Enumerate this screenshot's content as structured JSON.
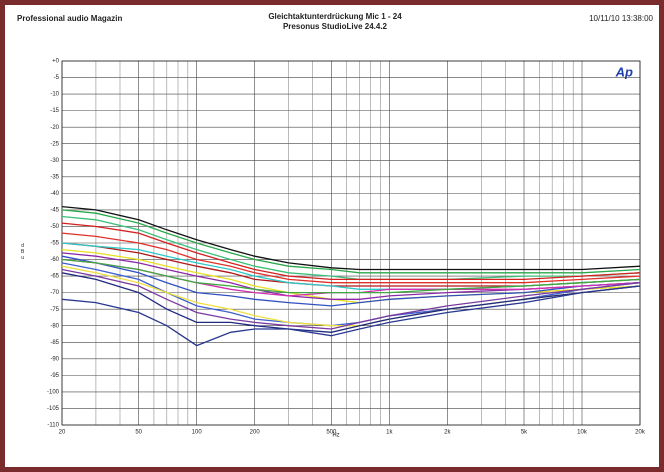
{
  "chart_data": {
    "type": "line",
    "source": "Professional audio Magazin",
    "title": "Gleichtaktunterdrückung Mic 1 - 24",
    "subtitle": "Presonus StudioLive 24.4.2",
    "timestamp": "10/11/10 13:38:00",
    "logo": "Ap",
    "xlabel": "Hz",
    "ylabel": "dBu",
    "xscale": "log",
    "grid": true,
    "xlim": [
      20,
      20000
    ],
    "ylim": [
      -110,
      0
    ],
    "xticks": [
      20,
      50,
      100,
      200,
      500,
      {
        "value": 1000,
        "label": "1k"
      },
      {
        "value": 2000,
        "label": "2k"
      },
      {
        "value": 5000,
        "label": "5k"
      },
      {
        "value": 10000,
        "label": "10k"
      },
      {
        "value": 20000,
        "label": "20k"
      }
    ],
    "xminorticks": [
      30,
      40,
      60,
      70,
      80,
      90,
      300,
      400,
      600,
      700,
      800,
      900,
      3000,
      4000,
      6000,
      7000,
      8000,
      9000
    ],
    "yticks": [
      {
        "value": 0,
        "label": "+0"
      },
      -5,
      -10,
      -15,
      -20,
      -25,
      -30,
      -35,
      -40,
      -45,
      -50,
      -55,
      -60,
      -65,
      -70,
      -75,
      -80,
      -85,
      -90,
      -95,
      -100,
      -105,
      -110
    ],
    "x": [
      20,
      30,
      50,
      70,
      100,
      150,
      200,
      300,
      500,
      700,
      1000,
      2000,
      5000,
      10000,
      20000
    ],
    "series": [
      {
        "color": "#111111",
        "values": [
          -44,
          -45,
          -48,
          -51,
          -54,
          -57,
          -59,
          -61,
          -62.5,
          -63,
          -63,
          -63,
          -63,
          -63,
          -62
        ]
      },
      {
        "color": "#2aa84a",
        "values": [
          -45,
          -46,
          -49,
          -52,
          -55,
          -58,
          -60,
          -62,
          -63,
          -64,
          -64,
          -64,
          -64,
          -64,
          -63
        ]
      },
      {
        "color": "#3cc07a",
        "values": [
          -47,
          -48,
          -51,
          -54,
          -57,
          -60,
          -62,
          -64,
          -65,
          -66,
          -66,
          -66,
          -65,
          -65,
          -64
        ]
      },
      {
        "color": "#d42020",
        "values": [
          -49,
          -50,
          -52,
          -55,
          -58,
          -61,
          -63,
          -65,
          -66,
          -66,
          -66,
          -66,
          -66,
          -65,
          -64
        ]
      },
      {
        "color": "#e0302a",
        "values": [
          -52,
          -53,
          -55,
          -57,
          -60,
          -62,
          -64,
          -66,
          -67,
          -67,
          -67,
          -67,
          -67,
          -66,
          -65
        ]
      },
      {
        "color": "#b01818",
        "values": [
          -55,
          -56,
          -58,
          -60,
          -62,
          -64,
          -66,
          -67,
          -68,
          -68,
          -68,
          -68,
          -68,
          -67,
          -66
        ]
      },
      {
        "color": "#30c8c8",
        "values": [
          -55,
          -56,
          -57,
          -59,
          -61,
          -63,
          -65,
          -67,
          -68,
          -69,
          -69,
          -69,
          -68,
          -67,
          -66
        ]
      },
      {
        "color": "#e8e020",
        "values": [
          -57,
          -58,
          -60,
          -62,
          -64,
          -66,
          -68,
          -70,
          -72,
          -73,
          -72,
          -71,
          -70,
          -69,
          -68
        ]
      },
      {
        "color": "#8a2aa8",
        "values": [
          -58,
          -59,
          -61,
          -63,
          -65,
          -67,
          -69,
          -71,
          -72,
          -72,
          -71,
          -70,
          -69,
          -68,
          -67
        ]
      },
      {
        "color": "#3050c0",
        "values": [
          -59,
          -61,
          -64,
          -67,
          -70,
          -71,
          -72,
          -73,
          -74,
          -73,
          -72,
          -71,
          -70,
          -68,
          -67
        ]
      },
      {
        "color": "#d030b0",
        "values": [
          -60,
          -61,
          -63,
          -65,
          -67,
          -69,
          -70,
          -71,
          -70,
          -70,
          -69,
          -69,
          -69,
          -68,
          -67
        ]
      },
      {
        "color": "#40a840",
        "values": [
          -60,
          -61,
          -63,
          -65,
          -67,
          -68,
          -69,
          -70,
          -70,
          -70,
          -70,
          -69,
          -68,
          -67,
          -66
        ]
      },
      {
        "color": "#4060d0",
        "values": [
          -61,
          -63,
          -66,
          -70,
          -74,
          -76,
          -78,
          -79,
          -80,
          -79,
          -77,
          -75,
          -72,
          -69,
          -67
        ]
      },
      {
        "color": "#f0e040",
        "values": [
          -62,
          -64,
          -67,
          -70,
          -73,
          -75,
          -77,
          -79,
          -80,
          -80,
          -78,
          -75,
          -72,
          -70,
          -68
        ]
      },
      {
        "color": "#7a3aa0",
        "values": [
          -63,
          -65,
          -68,
          -72,
          -76,
          -78,
          -79,
          -80,
          -81,
          -79,
          -77,
          -74,
          -71,
          -69,
          -67
        ]
      },
      {
        "color": "#202a80",
        "values": [
          -64,
          -66,
          -70,
          -75,
          -79,
          -79,
          -80,
          -81,
          -82,
          -80,
          -78,
          -75,
          -72,
          -70,
          -68
        ]
      },
      {
        "color": "#283890",
        "values": [
          -72,
          -73,
          -76,
          -80,
          -86,
          -82,
          -81,
          -81,
          -83,
          -81,
          -79,
          -76,
          -73,
          -70,
          -68
        ]
      }
    ]
  }
}
